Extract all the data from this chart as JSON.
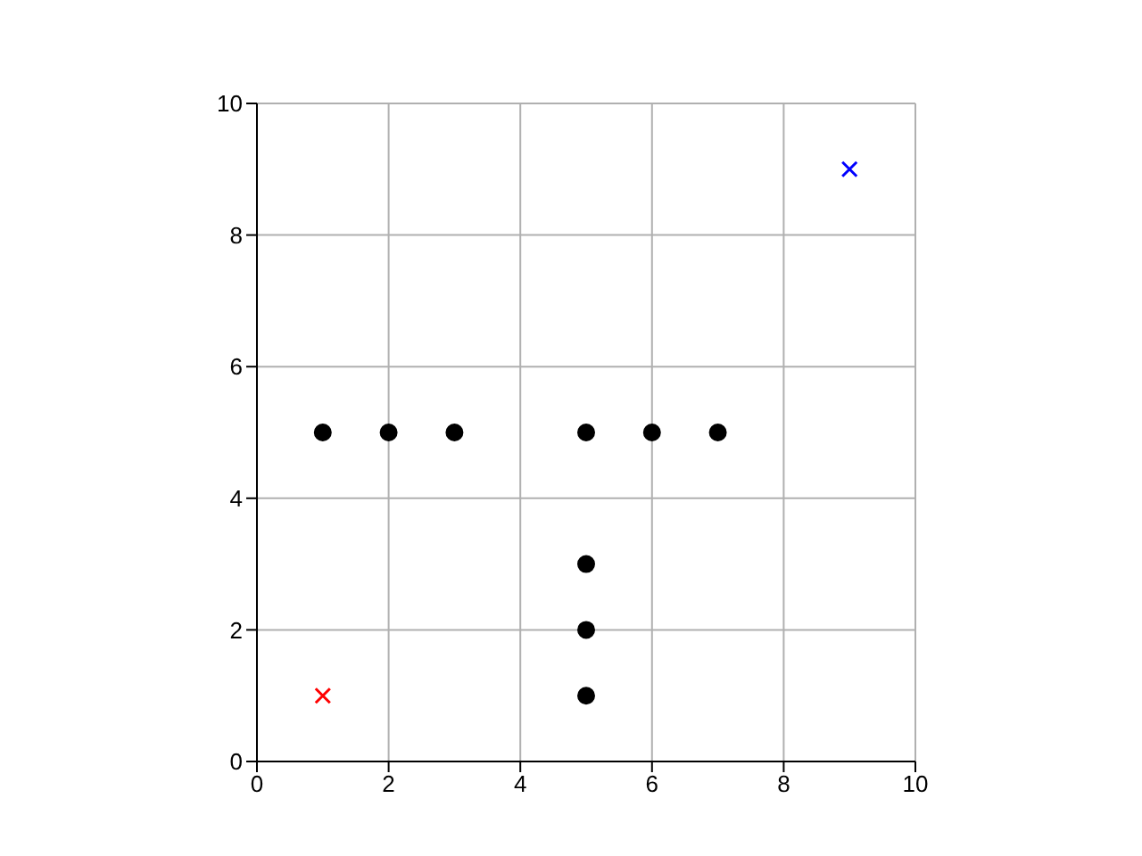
{
  "chart_data": {
    "type": "scatter",
    "xlim": [
      0,
      10
    ],
    "ylim": [
      0,
      10
    ],
    "xticks": [
      0,
      2,
      4,
      6,
      8,
      10
    ],
    "yticks": [
      0,
      2,
      4,
      6,
      8,
      10
    ],
    "grid": true,
    "series": [
      {
        "color": "#000000",
        "marker": "circle",
        "x": [
          1,
          2,
          3,
          5,
          6,
          7,
          5,
          5,
          5
        ],
        "values": [
          5,
          5,
          5,
          5,
          5,
          5,
          3,
          2,
          1
        ]
      },
      {
        "color": "#ff0000",
        "marker": "cross",
        "x": [
          1
        ],
        "values": [
          1
        ]
      },
      {
        "color": "#0000ff",
        "marker": "cross",
        "x": [
          9
        ],
        "values": [
          9
        ]
      }
    ]
  }
}
